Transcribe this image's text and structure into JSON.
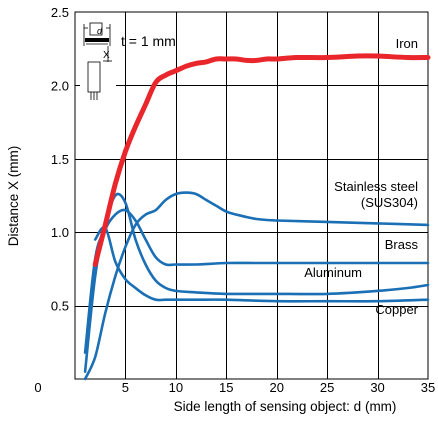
{
  "chart_data": {
    "type": "line",
    "title": "",
    "xlabel": "Side length of sensing object: d (mm)",
    "ylabel": "Distance X (mm)",
    "xlim": [
      0,
      35
    ],
    "ylim": [
      0,
      2.5
    ],
    "x_ticks": [
      0,
      5,
      10,
      15,
      20,
      25,
      30,
      35
    ],
    "y_ticks": [
      0.5,
      1.0,
      1.5,
      2.0,
      2.5
    ],
    "x_tick_labels": [
      "0",
      "5",
      "10",
      "15",
      "20",
      "25",
      "30",
      "35"
    ],
    "y_tick_labels": [
      "0.5",
      "1.0",
      "1.5",
      "2.0",
      "2.5"
    ],
    "grid": true,
    "colors": {
      "iron": "#e8262b",
      "others": "#1a6fb5"
    },
    "inset": {
      "condition_label": "t = 1 mm",
      "d_symbol": "d",
      "x_symbol": "X"
    },
    "series": [
      {
        "name": "Iron",
        "color": "#e8262b",
        "x": [
          2,
          3,
          4,
          5,
          6,
          7,
          8,
          9,
          10,
          11,
          12,
          13,
          14,
          15,
          16,
          17,
          18,
          19,
          20,
          22,
          25,
          28,
          30,
          33,
          35
        ],
        "y": [
          0.78,
          1.05,
          1.33,
          1.55,
          1.72,
          1.87,
          2.02,
          2.07,
          2.1,
          2.13,
          2.15,
          2.16,
          2.18,
          2.18,
          2.18,
          2.17,
          2.17,
          2.18,
          2.18,
          2.19,
          2.19,
          2.2,
          2.2,
          2.19,
          2.19
        ]
      },
      {
        "name": "Stainless steel\n(SUS304)",
        "color": "#1a6fb5",
        "x": [
          1.0,
          2.0,
          3.0,
          4.0,
          5.0,
          6.0,
          7.0,
          8.0,
          9.0,
          10.0,
          11.0,
          12.0,
          13.0,
          14.0,
          15.0,
          16.0,
          18.0,
          20.0,
          25.0,
          30.0,
          35.0
        ],
        "y": [
          0.0,
          0.15,
          0.45,
          0.7,
          0.9,
          1.05,
          1.12,
          1.15,
          1.22,
          1.26,
          1.27,
          1.26,
          1.22,
          1.18,
          1.14,
          1.12,
          1.09,
          1.08,
          1.07,
          1.06,
          1.05
        ]
      },
      {
        "name": "Brass",
        "color": "#1a6fb5",
        "x": [
          1.0,
          2.0,
          3.0,
          4.0,
          5.0,
          6.0,
          7.0,
          8.0,
          9.0,
          10.0,
          12.0,
          15.0,
          18.0,
          20.0,
          25.0,
          30.0,
          35.0
        ],
        "y": [
          0.18,
          0.82,
          1.02,
          1.12,
          1.15,
          1.08,
          0.95,
          0.83,
          0.78,
          0.78,
          0.78,
          0.79,
          0.79,
          0.79,
          0.79,
          0.79,
          0.79
        ]
      },
      {
        "name": "Aluminum",
        "color": "#1a6fb5",
        "x": [
          1.0,
          2.0,
          3.0,
          4.0,
          5.0,
          6.0,
          7.0,
          8.0,
          9.0,
          10.0,
          12.0,
          15.0,
          18.0,
          20.0,
          25.0,
          30.0,
          33.0,
          35.0
        ],
        "y": [
          0.05,
          0.7,
          1.05,
          1.25,
          1.2,
          0.95,
          0.78,
          0.67,
          0.62,
          0.6,
          0.59,
          0.58,
          0.58,
          0.58,
          0.58,
          0.6,
          0.62,
          0.64
        ]
      },
      {
        "name": "Copper",
        "color": "#1a6fb5",
        "x": [
          2.0,
          3.0,
          4.0,
          5.0,
          6.0,
          7.0,
          8.0,
          9.0,
          10.0,
          12.0,
          15.0,
          20.0,
          25.0,
          30.0,
          35.0
        ],
        "y": [
          0.95,
          1.03,
          0.8,
          0.68,
          0.62,
          0.57,
          0.54,
          0.54,
          0.54,
          0.54,
          0.54,
          0.53,
          0.53,
          0.53,
          0.54
        ]
      }
    ]
  }
}
